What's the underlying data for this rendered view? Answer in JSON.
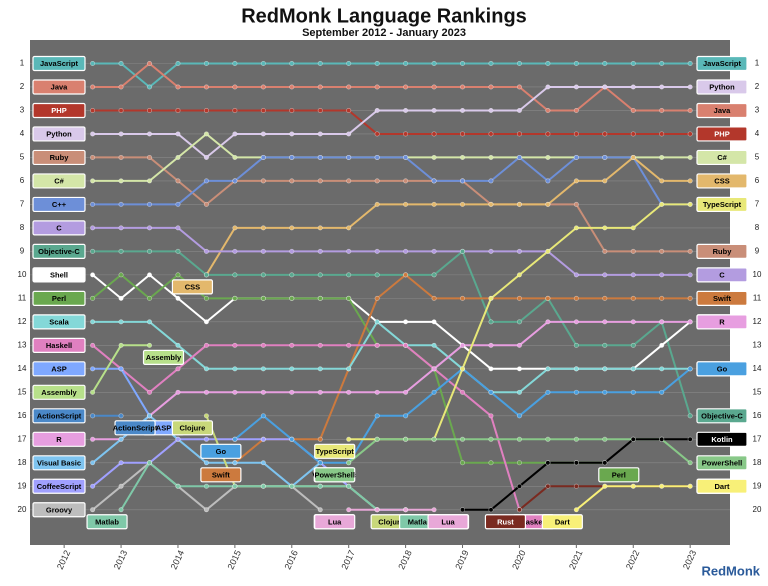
{
  "chart_data": {
    "type": "bump",
    "title": "RedMonk Language Rankings",
    "subtitle": "September 2012 - January 2023",
    "logo": "RedMonk",
    "xlim": [
      2011.4,
      2023.7
    ],
    "xticks": [
      2012,
      2013,
      2014,
      2015,
      2016,
      2017,
      2018,
      2019,
      2020,
      2021,
      2022,
      2023
    ],
    "ylim": [
      21.5,
      0
    ],
    "yticks": [
      1,
      2,
      3,
      4,
      5,
      6,
      7,
      8,
      9,
      10,
      11,
      12,
      13,
      14,
      15,
      16,
      17,
      18,
      19,
      20
    ],
    "grid": true,
    "x": [
      2012.5,
      2013,
      2013.5,
      2014,
      2014.5,
      2015,
      2015.5,
      2016,
      2016.5,
      2017,
      2017.5,
      2018,
      2018.5,
      2019,
      2019.5,
      2020,
      2020.5,
      2021,
      2021.5,
      2022,
      2022.5,
      2023
    ],
    "series": [
      {
        "name": "JavaScript",
        "color": "#5ab8b8",
        "values": [
          1,
          1,
          2,
          1,
          1,
          1,
          1,
          1,
          1,
          1,
          1,
          1,
          1,
          1,
          1,
          1,
          1,
          1,
          1,
          1,
          1,
          1
        ]
      },
      {
        "name": "Java",
        "color": "#d9806f",
        "values": [
          2,
          2,
          1,
          2,
          2,
          2,
          2,
          2,
          2,
          2,
          2,
          2,
          2,
          2,
          2,
          2,
          3,
          3,
          2,
          3,
          3,
          3
        ]
      },
      {
        "name": "PHP",
        "color": "#b3372b",
        "values": [
          3,
          3,
          3,
          3,
          3,
          3,
          3,
          3,
          3,
          3,
          4,
          4,
          4,
          4,
          4,
          4,
          4,
          4,
          4,
          4,
          4,
          4
        ]
      },
      {
        "name": "Python",
        "color": "#d9c9ea",
        "values": [
          4,
          4,
          4,
          4,
          5,
          4,
          4,
          4,
          4,
          4,
          3,
          3,
          3,
          3,
          3,
          3,
          2,
          2,
          2,
          2,
          2,
          2
        ]
      },
      {
        "name": "Ruby",
        "color": "#c98e78",
        "values": [
          5,
          5,
          5,
          6,
          7,
          6,
          6,
          6,
          6,
          6,
          6,
          6,
          6,
          6,
          7,
          7,
          7,
          7,
          9,
          9,
          9,
          9
        ]
      },
      {
        "name": "C#",
        "color": "#d4e6a8",
        "values": [
          6,
          6,
          6,
          5,
          4,
          5,
          5,
          5,
          5,
          5,
          5,
          5,
          5,
          5,
          5,
          5,
          5,
          5,
          5,
          5,
          5,
          5
        ]
      },
      {
        "name": "C++",
        "color": "#6d8fd8",
        "values": [
          7,
          7,
          7,
          7,
          6,
          6,
          5,
          5,
          5,
          5,
          5,
          5,
          6,
          6,
          6,
          5,
          6,
          5,
          5,
          5,
          7,
          7
        ]
      },
      {
        "name": "CSS",
        "color": "#e3b86c",
        "values": [
          null,
          null,
          null,
          null,
          10,
          8,
          8,
          8,
          8,
          8,
          7,
          7,
          7,
          7,
          7,
          7,
          7,
          6,
          6,
          5,
          6,
          6
        ]
      },
      {
        "name": "C",
        "color": "#b39ce0",
        "values": [
          8,
          8,
          8,
          8,
          9,
          9,
          9,
          9,
          9,
          9,
          9,
          9,
          9,
          9,
          9,
          9,
          9,
          10,
          10,
          10,
          10,
          10
        ]
      },
      {
        "name": "Objective-C",
        "color": "#5aa88f",
        "values": [
          9,
          9,
          9,
          9,
          10,
          10,
          10,
          10,
          10,
          10,
          10,
          10,
          10,
          9,
          12,
          12,
          11,
          13,
          13,
          13,
          12,
          16
        ]
      },
      {
        "name": "Shell",
        "color": "#ffffff",
        "values": [
          10,
          11,
          10,
          11,
          12,
          11,
          11,
          11,
          11,
          11,
          12,
          12,
          12,
          13,
          14,
          14,
          14,
          14,
          14,
          14,
          13,
          12
        ]
      },
      {
        "name": "Perl",
        "color": "#6aa84f",
        "values": [
          11,
          10,
          11,
          10,
          11,
          11,
          11,
          11,
          11,
          11,
          13,
          13,
          14,
          18,
          18,
          18,
          18,
          18,
          18,
          null,
          null,
          null
        ]
      },
      {
        "name": "Swift",
        "color": "#cc7a3e",
        "values": [
          null,
          null,
          null,
          null,
          null,
          18,
          17,
          17,
          17,
          14,
          11,
          10,
          11,
          11,
          11,
          11,
          11,
          11,
          11,
          11,
          11,
          11
        ]
      },
      {
        "name": "Scala",
        "color": "#84d8d8",
        "values": [
          12,
          12,
          12,
          13,
          14,
          14,
          14,
          14,
          14,
          14,
          12,
          13,
          13,
          14,
          15,
          15,
          14,
          14,
          14,
          14,
          14,
          14
        ]
      },
      {
        "name": "Haskell",
        "color": "#e080c0",
        "values": [
          13,
          14,
          15,
          14,
          13,
          13,
          13,
          13,
          13,
          13,
          13,
          13,
          14,
          15,
          16,
          20,
          null,
          null,
          null,
          null,
          null,
          null
        ]
      },
      {
        "name": "ASP",
        "color": "#7fa8ff",
        "values": [
          14,
          14,
          16,
          null,
          null,
          null,
          null,
          null,
          null,
          null,
          null,
          null,
          null,
          null,
          null,
          null,
          null,
          null,
          null,
          null,
          null,
          null
        ]
      },
      {
        "name": "Assembly",
        "color": "#b7e08a",
        "values": [
          15,
          13,
          13,
          null,
          null,
          null,
          null,
          null,
          null,
          null,
          null,
          null,
          null,
          null,
          null,
          null,
          null,
          null,
          null,
          null,
          null,
          null
        ]
      },
      {
        "name": "ActionScript",
        "color": "#4a88c8",
        "values": [
          16,
          16,
          null,
          null,
          null,
          null,
          null,
          null,
          null,
          null,
          null,
          null,
          null,
          null,
          null,
          null,
          null,
          null,
          null,
          null,
          null,
          null
        ]
      },
      {
        "name": "R",
        "color": "#e79ee0",
        "values": [
          17,
          17,
          16,
          15,
          15,
          15,
          15,
          15,
          15,
          15,
          15,
          15,
          14,
          13,
          13,
          13,
          12,
          12,
          12,
          12,
          12,
          12
        ]
      },
      {
        "name": "Visual Basic",
        "color": "#7ec4f0",
        "values": [
          18,
          17,
          16,
          17,
          18,
          18,
          18,
          19,
          18,
          null,
          null,
          null,
          null,
          null,
          null,
          null,
          null,
          null,
          null,
          null,
          null,
          null
        ]
      },
      {
        "name": "CoffeeScript",
        "color": "#a0a0ff",
        "values": [
          19,
          18,
          18,
          17,
          17,
          17,
          17,
          17,
          18,
          19,
          20,
          20,
          null,
          null,
          null,
          null,
          null,
          null,
          null,
          null,
          null,
          null
        ]
      },
      {
        "name": "Groovy",
        "color": "#bdbdbd",
        "values": [
          20,
          19,
          18,
          19,
          20,
          19,
          19,
          19,
          20,
          null,
          null,
          null,
          null,
          null,
          null,
          null,
          null,
          null,
          null,
          null,
          null,
          null
        ]
      },
      {
        "name": "Clojure",
        "color": "#c8d87a",
        "values": [
          null,
          null,
          null,
          null,
          16,
          19,
          19,
          19,
          19,
          19,
          20,
          null,
          null,
          null,
          null,
          null,
          null,
          null,
          null,
          null,
          null,
          null
        ]
      },
      {
        "name": "Go",
        "color": "#4aa0e0",
        "values": [
          null,
          null,
          null,
          null,
          null,
          17,
          16,
          17,
          18,
          18,
          16,
          16,
          15,
          14,
          15,
          16,
          15,
          15,
          15,
          15,
          15,
          14
        ]
      },
      {
        "name": "Matlab",
        "color": "#7fc8a8",
        "values": [
          null,
          20,
          18,
          19,
          19,
          19,
          19,
          19,
          19,
          19,
          20,
          20,
          null,
          null,
          null,
          null,
          null,
          null,
          null,
          null,
          null,
          null
        ]
      },
      {
        "name": "TypeScript",
        "color": "#e8e878",
        "values": [
          null,
          null,
          null,
          null,
          null,
          null,
          null,
          null,
          null,
          17,
          17,
          17,
          17,
          14,
          11,
          10,
          9,
          8,
          8,
          8,
          7,
          7
        ]
      },
      {
        "name": "PowerShell",
        "color": "#88c888",
        "values": [
          null,
          null,
          null,
          null,
          null,
          null,
          null,
          null,
          null,
          18,
          17,
          17,
          17,
          17,
          17,
          17,
          17,
          17,
          17,
          17,
          17,
          18
        ]
      },
      {
        "name": "Kotlin",
        "color": "#000000",
        "values": [
          null,
          null,
          null,
          null,
          null,
          null,
          null,
          null,
          null,
          null,
          null,
          null,
          null,
          20,
          20,
          19,
          18,
          18,
          18,
          17,
          17,
          17
        ]
      },
      {
        "name": "Rust",
        "color": "#7a2a20",
        "values": [
          null,
          null,
          null,
          null,
          null,
          null,
          null,
          null,
          null,
          null,
          null,
          null,
          null,
          null,
          null,
          20,
          19,
          19,
          19,
          19,
          19,
          19
        ]
      },
      {
        "name": "Dart",
        "color": "#f8f078",
        "values": [
          null,
          null,
          null,
          null,
          null,
          null,
          null,
          null,
          null,
          null,
          null,
          null,
          null,
          null,
          null,
          null,
          null,
          20,
          19,
          19,
          19,
          19
        ]
      },
      {
        "name": "Lua",
        "color": "#e8a8d8",
        "values": [
          null,
          null,
          null,
          null,
          null,
          null,
          null,
          null,
          null,
          20,
          20,
          20,
          20,
          null,
          null,
          null,
          null,
          null,
          null,
          null,
          null,
          null
        ]
      }
    ]
  }
}
